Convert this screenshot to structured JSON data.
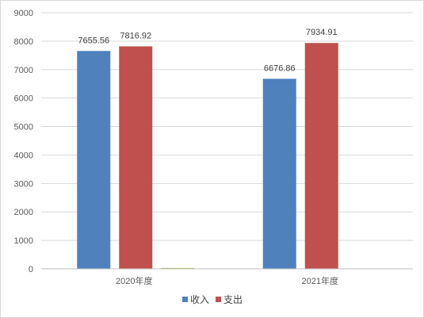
{
  "chart_data": {
    "type": "bar",
    "categories": [
      "2020年度",
      "2021年度"
    ],
    "series": [
      {
        "name": "收入",
        "values": [
          7655.56,
          6676.86
        ],
        "labels": [
          "7655.56",
          "6676.86"
        ],
        "color": "#4f81bd"
      },
      {
        "name": "支出",
        "values": [
          7816.92,
          7934.91
        ],
        "labels": [
          "7816.92",
          "7934.91"
        ],
        "color": "#c0504d"
      },
      {
        "name": "",
        "values": [
          30,
          0
        ],
        "labels": [
          "",
          ""
        ],
        "color": "#9bbb59"
      }
    ],
    "yticks": [
      "0",
      "1000",
      "2000",
      "3000",
      "4000",
      "5000",
      "6000",
      "7000",
      "8000",
      "9000"
    ],
    "ylim": [
      0,
      9000
    ],
    "grid": true,
    "legend": {
      "position": "bottom",
      "items": [
        "收入",
        "支出"
      ]
    },
    "title": "",
    "xlabel": "",
    "ylabel": ""
  }
}
